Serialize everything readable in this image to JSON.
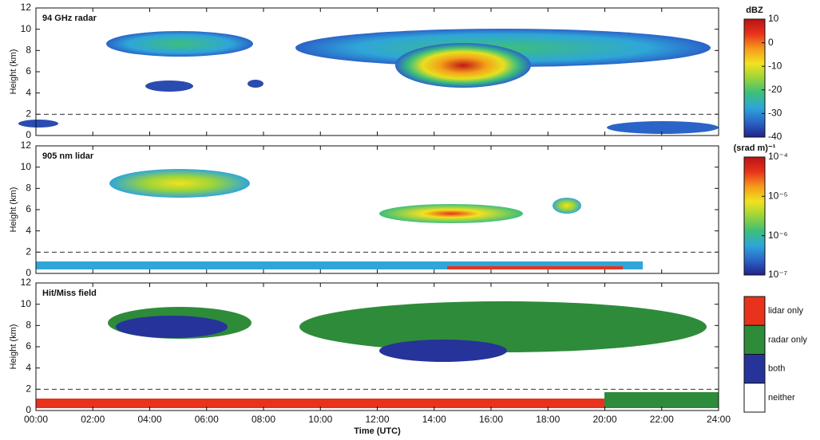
{
  "chart_data": [
    {
      "type": "heatmap",
      "title": "94 GHz radar",
      "ylabel": "Height (km)",
      "ylim": [
        0,
        12
      ],
      "yticks": [
        0,
        2,
        4,
        6,
        8,
        10,
        12
      ],
      "xlim": [
        0,
        24
      ],
      "xticks": [
        0,
        2,
        4,
        6,
        8,
        10,
        12,
        14,
        16,
        18,
        20,
        22,
        24
      ],
      "reference_line": 2,
      "colorbar": {
        "label": "dBZ",
        "lim": [
          -40,
          10
        ],
        "log": false,
        "ticks": [
          10,
          0,
          -10,
          -20,
          -30,
          -40
        ],
        "colors": [
          "#22228a",
          "#2a64c8",
          "#2fa6d8",
          "#3cbf7a",
          "#9bd43a",
          "#f2e21e",
          "#f59a1a",
          "#e8321c",
          "#b81414"
        ]
      }
    },
    {
      "type": "heatmap",
      "title": "905 nm lidar",
      "ylabel": "Height (km)",
      "ylim": [
        0,
        12
      ],
      "yticks": [
        0,
        2,
        4,
        6,
        8,
        10,
        12
      ],
      "xlim": [
        0,
        24
      ],
      "xticks": [
        0,
        2,
        4,
        6,
        8,
        10,
        12,
        14,
        16,
        18,
        20,
        22,
        24
      ],
      "reference_line": 2,
      "colorbar": {
        "label": "(srad m)⁻¹",
        "lim": [
          1e-07,
          0.0001
        ],
        "log": true,
        "ticks": [
          {
            "value": 0.0001,
            "label": "10⁻⁴"
          },
          {
            "value": 1e-05,
            "label": "10⁻⁵"
          },
          {
            "value": 1e-06,
            "label": "10⁻⁶"
          },
          {
            "value": 1e-07,
            "label": "10⁻⁷"
          }
        ],
        "colors": [
          "#22228a",
          "#2a64c8",
          "#2fa6d8",
          "#3cbf7a",
          "#9bd43a",
          "#f2e21e",
          "#f59a1a",
          "#e8321c",
          "#b81414"
        ]
      }
    },
    {
      "type": "categorical",
      "title": "Hit/Miss field",
      "ylabel": "Height (km)",
      "xlabel": "Time (UTC)",
      "ylim": [
        0,
        12
      ],
      "yticks": [
        0,
        2,
        4,
        6,
        8,
        10,
        12
      ],
      "xlim": [
        0,
        24
      ],
      "xticks": [
        {
          "value": 0,
          "label": "00:00"
        },
        {
          "value": 2,
          "label": "02:00"
        },
        {
          "value": 4,
          "label": "04:00"
        },
        {
          "value": 6,
          "label": "06:00"
        },
        {
          "value": 8,
          "label": "08:00"
        },
        {
          "value": 10,
          "label": "10:00"
        },
        {
          "value": 12,
          "label": "12:00"
        },
        {
          "value": 14,
          "label": "14:00"
        },
        {
          "value": 16,
          "label": "16:00"
        },
        {
          "value": 18,
          "label": "18:00"
        },
        {
          "value": 20,
          "label": "20:00"
        },
        {
          "value": 22,
          "label": "22:00"
        },
        {
          "value": 24,
          "label": "24:00"
        }
      ],
      "reference_line": 2,
      "legend": [
        {
          "name": "lidar only",
          "color": "#e8321c"
        },
        {
          "name": "radar only",
          "color": "#2e8b3a"
        },
        {
          "name": "both",
          "color": "#26339a"
        },
        {
          "name": "neither",
          "color": "#ffffff"
        }
      ]
    }
  ]
}
